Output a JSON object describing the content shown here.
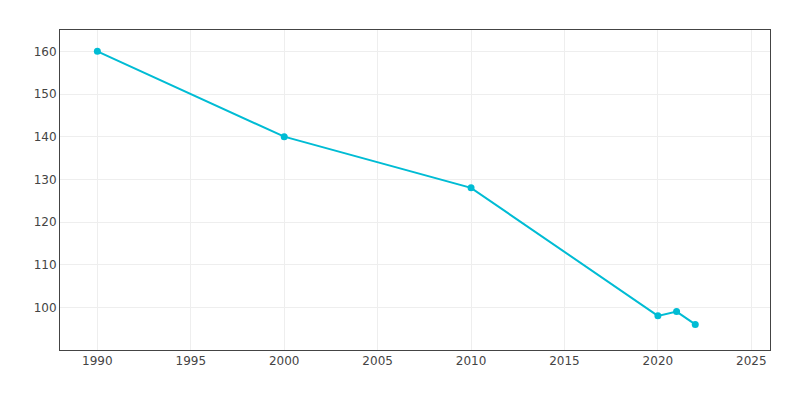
{
  "chart_data": {
    "type": "line",
    "x": [
      1990,
      2000,
      2010,
      2020,
      2021,
      2022
    ],
    "values": [
      160,
      140,
      128,
      98,
      99,
      96
    ],
    "color": "#00BCD4",
    "marker": "circle",
    "line_style": "solid",
    "xlim": [
      1988,
      2026
    ],
    "ylim": [
      90,
      165
    ],
    "xticks": [
      1990,
      1995,
      2000,
      2005,
      2010,
      2015,
      2020,
      2025
    ],
    "yticks": [
      100,
      110,
      120,
      130,
      140,
      150,
      160
    ],
    "grid": true
  }
}
